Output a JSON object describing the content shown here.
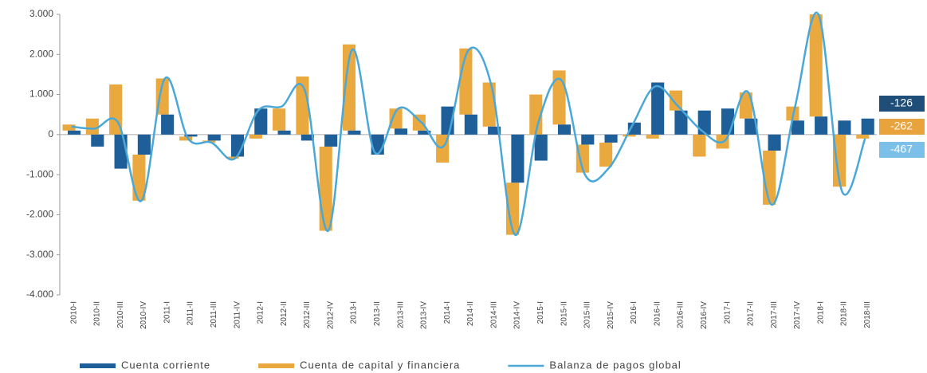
{
  "chart_data": {
    "type": "bar",
    "categories": [
      "2010-I",
      "2010-II",
      "2010-III",
      "2010-IV",
      "2011-I",
      "2011-II",
      "2011-III",
      "2011-IV",
      "2012-I",
      "2012-II",
      "2012-III",
      "2012-IV",
      "2013-I",
      "2013-II",
      "2013-III",
      "2013-IV",
      "2014-I",
      "2014-II",
      "2014-III",
      "2014-IV",
      "2015-I",
      "2015-II",
      "2015-III",
      "2015-IV",
      "2016-I",
      "2016-II",
      "2016-III",
      "2016-IV",
      "2017-I",
      "2017-II",
      "2017-III",
      "2017-IV",
      "2018-I",
      "2018-II",
      "2018-III"
    ],
    "series": [
      {
        "name": "Cuenta corriente",
        "color": "#1f5f99",
        "kind": "bar",
        "values": [
          100,
          -300,
          -850,
          -500,
          500,
          -50,
          -150,
          -550,
          650,
          100,
          -150,
          -300,
          100,
          -500,
          150,
          100,
          700,
          500,
          200,
          -1200,
          -650,
          250,
          -250,
          -200,
          300,
          1300,
          600,
          600,
          650,
          400,
          -400,
          350,
          450,
          350,
          400
        ]
      },
      {
        "name": "Cuenta de capital y financiera",
        "color": "#eaa93f",
        "kind": "bar",
        "values": [
          150,
          400,
          1250,
          -1150,
          900,
          -100,
          -50,
          -50,
          -100,
          550,
          1450,
          -2100,
          2150,
          0,
          500,
          400,
          -700,
          1650,
          1100,
          -1300,
          1000,
          1350,
          -700,
          -600,
          -50,
          -100,
          500,
          -550,
          -350,
          650,
          -1350,
          350,
          2550,
          -1300,
          -100
        ]
      },
      {
        "name": "Balanza de pagos global",
        "color": "#4aa8d8",
        "kind": "line",
        "values": [
          200,
          150,
          300,
          -1650,
          1400,
          -100,
          -200,
          -600,
          600,
          700,
          1100,
          -2400,
          2100,
          -450,
          650,
          300,
          -250,
          2100,
          1200,
          -2500,
          300,
          1350,
          -1000,
          -850,
          200,
          1200,
          700,
          100,
          -150,
          1050,
          -1750,
          700,
          3000,
          -1400,
          -100
        ]
      }
    ],
    "ylim": [
      -4000,
      3000
    ],
    "yticks": [
      {
        "value": 3000,
        "label": "3.000"
      },
      {
        "value": 2000,
        "label": "2.000"
      },
      {
        "value": 1000,
        "label": "1.000"
      },
      0,
      {
        "value": -1000,
        "label": "-1.000"
      },
      {
        "value": -2000,
        "label": "-2.000"
      },
      {
        "value": -3000,
        "label": "-3.000"
      },
      {
        "value": -4000,
        "label": "-4.000"
      }
    ],
    "annotations": [
      {
        "text": "-126",
        "color": "#1f4e79"
      },
      {
        "text": "-262",
        "color": "#e8a33d"
      },
      {
        "text": "-467",
        "color": "#7cc0ea"
      }
    ]
  }
}
